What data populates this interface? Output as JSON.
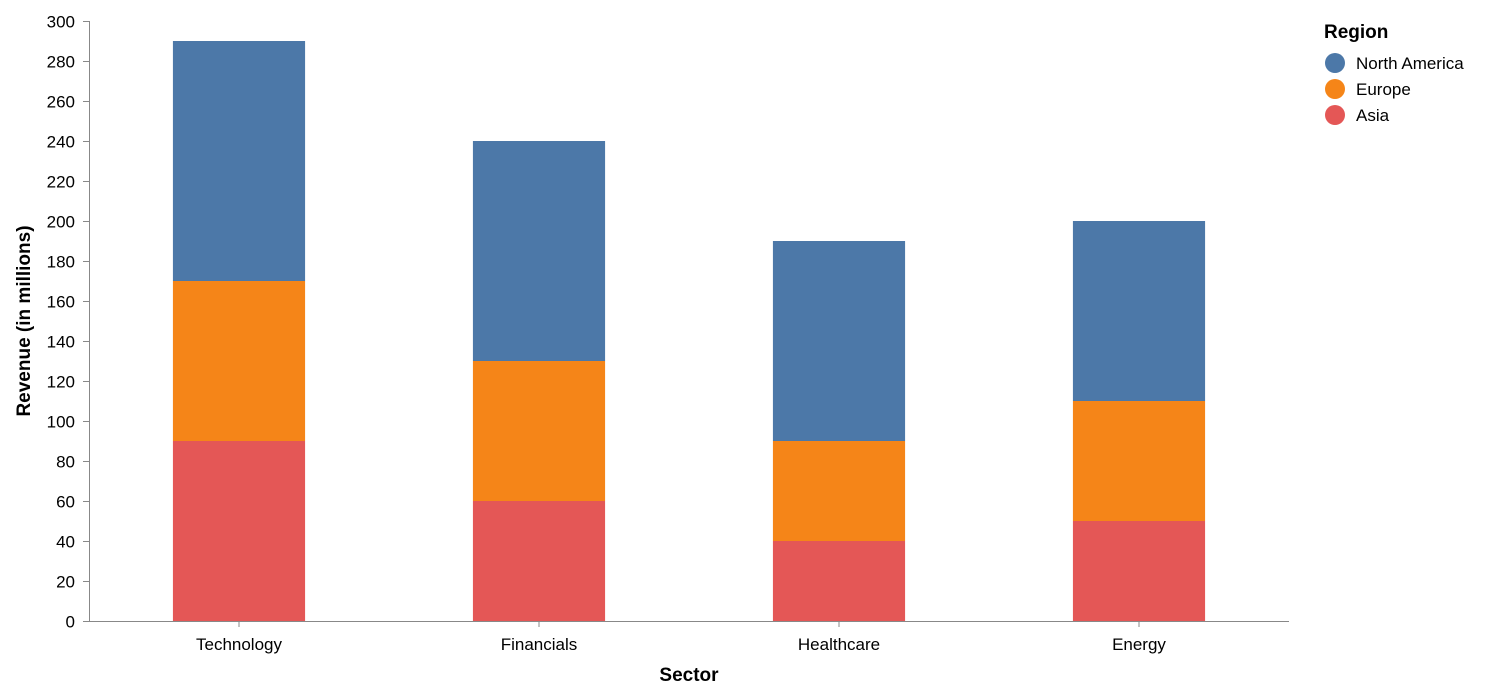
{
  "chart_data": {
    "type": "bar",
    "stacked": true,
    "categories": [
      "Technology",
      "Financials",
      "Healthcare",
      "Energy"
    ],
    "series": [
      {
        "name": "Asia",
        "values": [
          90,
          60,
          40,
          50
        ],
        "color": "#e45756"
      },
      {
        "name": "Europe",
        "values": [
          80,
          70,
          50,
          60
        ],
        "color": "#f58518"
      },
      {
        "name": "North America",
        "values": [
          120,
          110,
          100,
          90
        ],
        "color": "#4c78a8"
      }
    ],
    "legend_order": [
      "North America",
      "Europe",
      "Asia"
    ],
    "xlabel": "Sector",
    "ylabel": "Revenue (in millions)",
    "ylim": [
      0,
      300
    ],
    "yticks": [
      0,
      20,
      40,
      60,
      80,
      100,
      120,
      140,
      160,
      180,
      200,
      220,
      240,
      260,
      280,
      300
    ],
    "legend_title": "Region",
    "legend_position": "top-right",
    "grid": false
  }
}
